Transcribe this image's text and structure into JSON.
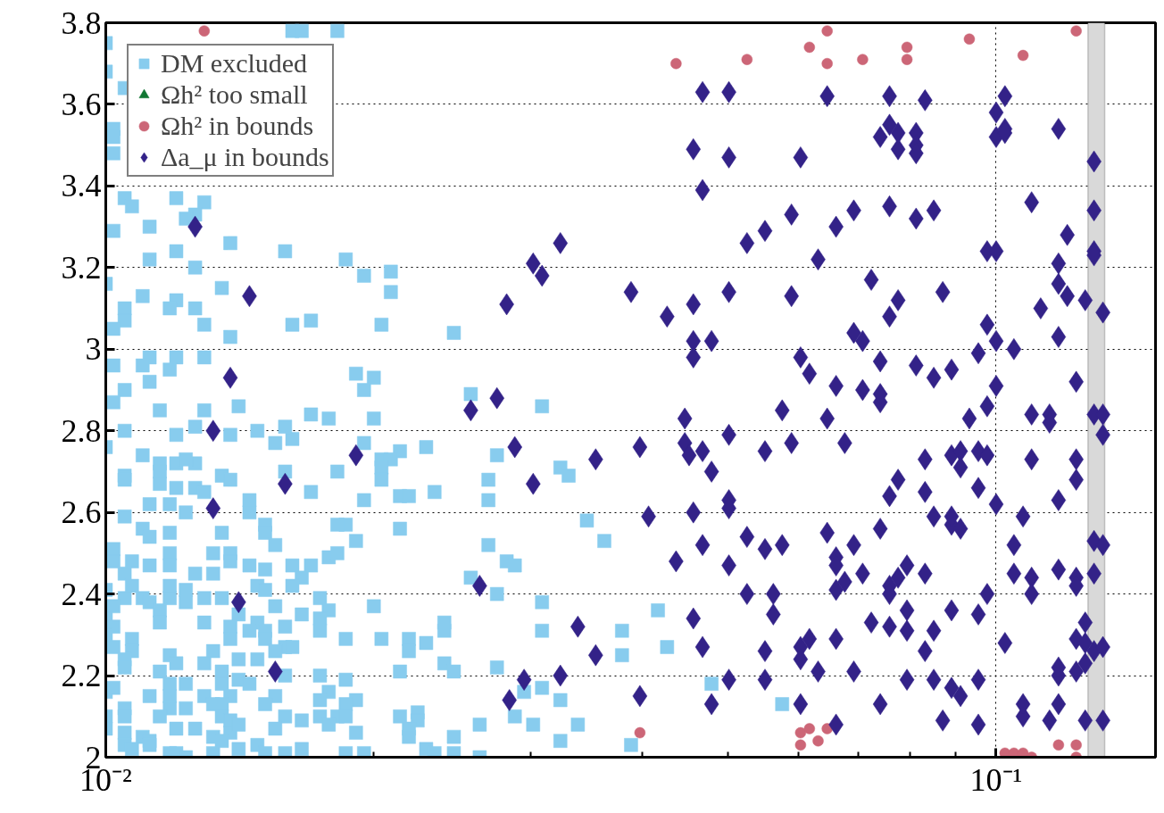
{
  "chart_data": {
    "type": "scatter",
    "log": "x",
    "grid": true,
    "legend": "top left",
    "xlim": [
      0.01,
      0.151
    ],
    "ylim": [
      2,
      3.8
    ],
    "xticks": [
      {
        "value": 0.01,
        "label": "10⁻²"
      },
      {
        "value": 0.02,
        "label": null
      },
      {
        "value": 0.03,
        "label": null
      },
      {
        "value": 0.04,
        "label": null
      },
      {
        "value": 0.05,
        "label": null
      },
      {
        "value": 0.06,
        "label": null
      },
      {
        "value": 0.07,
        "label": null
      },
      {
        "value": 0.08,
        "label": null
      },
      {
        "value": 0.09,
        "label": null
      },
      {
        "value": 0.1,
        "label": "10⁻¹"
      }
    ],
    "yticks": [
      2,
      2.2,
      2.4,
      2.6,
      2.8,
      3,
      3.2,
      3.4,
      3.6,
      3.8
    ],
    "bands": [
      {
        "axis": "x",
        "from": 0.1268,
        "to": 0.1324,
        "color": "#d9d9d9"
      }
    ],
    "series": [
      {
        "name": "DM excluded",
        "color": "#88ccee",
        "marker": "square",
        "x": [
          0.01,
          0.0105,
          0.0102,
          0.0102,
          0.0102,
          0.0105,
          0.0107,
          0.012,
          0.0129,
          0.0126,
          0.0123,
          0.0112,
          0.0102,
          0.0138,
          0.0159,
          0.012,
          0.0186,
          0.0112,
          0.0126,
          0.0195,
          0.0209,
          0.0209,
          0.01,
          0.011,
          0.0135,
          0.012,
          0.0105,
          0.0118,
          0.0126,
          0.0105,
          0.0129,
          0.0162,
          0.017,
          0.0204,
          0.0102,
          0.0138,
          0.0246,
          0.0102,
          0.0112,
          0.012,
          0.0129,
          0.011,
          0.0118,
          0.0191,
          0.02,
          0.0112,
          0.0105,
          0.0195,
          0.0257,
          0.0102,
          0.0115,
          0.0129,
          0.0141,
          0.017,
          0.0178,
          0.02,
          0.0309,
          0.0105,
          0.012,
          0.0126,
          0.0138,
          0.0148,
          0.0155,
          0.0162,
          0.0159,
          0.0195,
          0.0229,
          0.0214,
          0.01,
          0.011,
          0.0115,
          0.012,
          0.0126,
          0.0123,
          0.0204,
          0.0209,
          0.0275,
          0.0324,
          0.0331,
          0.0269,
          0.0105,
          0.0115,
          0.0135,
          0.0138,
          0.0159,
          0.0182,
          0.0204,
          0.0204,
          0.0105,
          0.0115,
          0.012,
          0.0126,
          0.0129,
          0.017,
          0.0214,
          0.0219,
          0.0234,
          0.0269,
          0.0112,
          0.0118,
          0.0145,
          0.0195,
          0.0123,
          0.0145,
          0.0105,
          0.0347,
          0.011,
          0.0118,
          0.0112,
          0.0186,
          0.0182,
          0.0214,
          0.0151,
          0.0151,
          0.0135,
          0.0191,
          0.0363,
          0.0155,
          0.0269,
          0.0102,
          0.0138,
          0.0118,
          0.0132,
          0.0102,
          0.0138,
          0.0178,
          0.0182,
          0.0107,
          0.0112,
          0.0118,
          0.0145,
          0.0151,
          0.0162,
          0.017,
          0.0282,
          0.0288,
          0.0105,
          0.0132,
          0.0126,
          0.0166,
          0.0257,
          0.0107,
          0.0118,
          0.0123,
          0.0148,
          0.0151,
          0.0162,
          0.01,
          0.0275,
          0.0105,
          0.011,
          0.0118,
          0.0129,
          0.0135,
          0.0174,
          0.0123,
          0.0112,
          0.0309,
          0.0102,
          0.0115,
          0.0141,
          0.0155,
          0.0178,
          0.02,
          0.0166,
          0.0417,
          0.01,
          0.0102,
          0.0115,
          0.0129,
          0.0138,
          0.0148,
          0.0159,
          0.0174,
          0.024,
          0.01,
          0.0107,
          0.0145,
          0.0151,
          0.0174,
          0.0138,
          0.0151,
          0.0186,
          0.0204,
          0.0219,
          0.0229,
          0.024,
          0.0309,
          0.038,
          0.0102,
          0.0107,
          0.0132,
          0.0159,
          0.0162,
          0.0427,
          0.038,
          0.0105,
          0.0118,
          0.012,
          0.0129,
          0.0141,
          0.0148,
          0.0155,
          0.0219,
          0.024,
          0.0246,
          0.0275,
          0.0105,
          0.0115,
          0.0135,
          0.0141,
          0.0159,
          0.0174,
          0.0186,
          0.0214,
          0.01,
          0.0102,
          0.0118,
          0.0123,
          0.0135,
          0.0145,
          0.0479,
          0.0309,
          0.0295,
          0.0112,
          0.0118,
          0.0129,
          0.0138,
          0.0155,
          0.0178,
          0.0174,
          0.0191,
          0.0324,
          0.0186,
          0.0575,
          0.0105,
          0.0118,
          0.0123,
          0.0132,
          0.0135,
          0.0151,
          0.0224,
          0.01,
          0.0105,
          0.0115,
          0.0135,
          0.0138,
          0.0159,
          0.0166,
          0.0174,
          0.0182,
          0.0186,
          0.0214,
          0.0224,
          0.0288,
          0.01,
          0.012,
          0.0126,
          0.0138,
          0.0141,
          0.0155,
          0.0178,
          0.0191,
          0.0219,
          0.0263,
          0.0302,
          0.0339,
          0.0105,
          0.011,
          0.0112,
          0.0132,
          0.0135,
          0.0219,
          0.0246,
          0.0324,
          0.0389,
          0.0105,
          0.0107,
          0.0112,
          0.0118,
          0.012,
          0.0123,
          0.0132,
          0.0141,
          0.0148,
          0.0151,
          0.0159,
          0.0166,
          0.0186,
          0.0195,
          0.0229,
          0.0234,
          0.0246,
          0.0263,
          0.0162,
          0.0166,
          0.0182,
          0.01
        ],
        "values": [
          3.68,
          3.64,
          3.54,
          3.52,
          3.48,
          3.37,
          3.35,
          3.37,
          3.36,
          3.33,
          3.32,
          3.3,
          3.29,
          3.26,
          3.24,
          3.24,
          3.22,
          3.22,
          3.2,
          3.18,
          3.19,
          3.14,
          3.16,
          3.13,
          3.15,
          3.12,
          3.1,
          3.1,
          3.1,
          3.07,
          3.06,
          3.06,
          3.07,
          3.06,
          3.05,
          3.03,
          3.04,
          2.96,
          2.98,
          2.98,
          2.98,
          2.96,
          2.95,
          2.94,
          2.93,
          2.92,
          2.9,
          2.9,
          2.89,
          2.87,
          2.85,
          2.85,
          2.86,
          2.84,
          2.83,
          2.83,
          2.86,
          2.8,
          2.79,
          2.81,
          2.79,
          2.8,
          2.77,
          2.78,
          2.81,
          2.77,
          2.76,
          2.75,
          2.76,
          2.74,
          2.72,
          2.72,
          2.72,
          2.73,
          2.73,
          2.73,
          2.74,
          2.71,
          2.69,
          2.68,
          2.69,
          2.7,
          2.69,
          2.68,
          2.7,
          2.7,
          2.71,
          2.68,
          2.68,
          2.67,
          2.66,
          2.66,
          2.65,
          2.65,
          2.64,
          2.64,
          2.65,
          2.63,
          2.62,
          2.62,
          2.63,
          2.63,
          2.6,
          2.6,
          2.59,
          2.58,
          2.56,
          2.55,
          2.54,
          2.57,
          2.57,
          2.56,
          2.57,
          2.55,
          2.55,
          2.53,
          2.53,
          2.52,
          2.52,
          2.51,
          2.5,
          2.5,
          2.5,
          2.48,
          2.48,
          2.49,
          2.5,
          2.48,
          2.47,
          2.47,
          2.47,
          2.46,
          2.47,
          2.47,
          2.48,
          2.47,
          2.45,
          2.45,
          2.45,
          2.44,
          2.44,
          2.42,
          2.42,
          2.41,
          2.42,
          2.41,
          2.42,
          2.41,
          2.4,
          2.39,
          2.39,
          2.39,
          2.39,
          2.39,
          2.39,
          2.38,
          2.38,
          2.38,
          2.37,
          2.36,
          2.35,
          2.37,
          2.36,
          2.37,
          2.35,
          2.36,
          2.34,
          2.32,
          2.33,
          2.33,
          2.32,
          2.33,
          2.32,
          2.34,
          2.33,
          2.3,
          2.29,
          2.31,
          2.31,
          2.31,
          2.29,
          2.29,
          2.29,
          2.29,
          2.29,
          2.28,
          2.31,
          2.31,
          2.31,
          2.27,
          2.26,
          2.26,
          2.27,
          2.27,
          2.27,
          2.25,
          2.24,
          2.25,
          2.23,
          2.23,
          2.24,
          2.24,
          2.26,
          2.26,
          2.23,
          2.21,
          2.22,
          2.22,
          2.21,
          2.21,
          2.19,
          2.2,
          2.2,
          2.19,
          2.21,
          2.16,
          2.17,
          2.18,
          2.18,
          2.18,
          2.18,
          2.18,
          2.17,
          2.16,
          2.15,
          2.15,
          2.15,
          2.15,
          2.15,
          2.16,
          2.14,
          2.14,
          2.14,
          2.13,
          2.13,
          2.12,
          2.12,
          2.12,
          2.13,
          2.13,
          2.13,
          2.11,
          2.1,
          2.1,
          2.1,
          2.1,
          2.09,
          2.1,
          2.09,
          2.1,
          2.1,
          2.1,
          2.1,
          2.09,
          2.1,
          2.07,
          2.07,
          2.07,
          2.06,
          2.08,
          2.07,
          2.08,
          2.06,
          2.07,
          2.08,
          2.08,
          2.08,
          2.06,
          2.05,
          2.04,
          2.05,
          2.04,
          2.05,
          2.05,
          2.04,
          2.03,
          2.03,
          2.02,
          2.03,
          2.01,
          2.01,
          2.0,
          2.01,
          2.02,
          2.03,
          2.01,
          2.01,
          2.02,
          2.01,
          2.01,
          2.02,
          2.01,
          2.01,
          2.0,
          3.78,
          3.78,
          3.78,
          3.75
        ]
      },
      {
        "name": "Ωh² too small",
        "color": "#117733",
        "marker": "triangle"
      },
      {
        "name": "Ωh² in bounds",
        "color": "#cc6677",
        "marker": "circle",
        "x": [
          0.0129,
          0.0437,
          0.0525,
          0.0617,
          0.0646,
          0.0646,
          0.0708,
          0.0794,
          0.0794,
          0.0933,
          0.1072,
          0.123,
          0.0398,
          0.0603,
          0.0603,
          0.0617,
          0.0631,
          0.0646,
          0.1023,
          0.1047,
          0.1072,
          0.1096,
          0.1175,
          0.123,
          0.123
        ],
        "values": [
          3.78,
          3.7,
          3.71,
          3.74,
          3.78,
          3.7,
          3.71,
          3.74,
          3.71,
          3.76,
          3.72,
          3.78,
          2.06,
          2.06,
          2.03,
          2.07,
          2.04,
          2.07,
          2.01,
          2.01,
          2.01,
          2.0,
          2.03,
          2.0,
          2.03
        ]
      },
      {
        "name": "Δa_μ in bounds",
        "color": "#332288",
        "marker": "diamond",
        "x": [
          0.0126,
          0.0145,
          0.0138,
          0.0132,
          0.0191,
          0.0159,
          0.0132,
          0.0141,
          0.0155,
          0.0257,
          0.0275,
          0.0263,
          0.0282,
          0.0302,
          0.0309,
          0.0324,
          0.0288,
          0.0302,
          0.0295,
          0.0324,
          0.0339,
          0.0355,
          0.0355,
          0.0284,
          0.0389,
          0.0398,
          0.0407,
          0.0398,
          0.0427,
          0.0437,
          0.0447,
          0.0447,
          0.0452,
          0.0457,
          0.0457,
          0.0457,
          0.0457,
          0.0457,
          0.0468,
          0.0457,
          0.0468,
          0.0468,
          0.0468,
          0.0468,
          0.0479,
          0.0479,
          0.0479,
          0.0501,
          0.0501,
          0.0501,
          0.0501,
          0.0501,
          0.0501,
          0.0501,
          0.0501,
          0.0525,
          0.0525,
          0.0525,
          0.055,
          0.055,
          0.055,
          0.055,
          0.055,
          0.0562,
          0.0562,
          0.0575,
          0.0575,
          0.0589,
          0.0589,
          0.0589,
          0.0603,
          0.0603,
          0.0603,
          0.0603,
          0.0603,
          0.0617,
          0.0617,
          0.0631,
          0.0631,
          0.0646,
          0.0646,
          0.0646,
          0.0661,
          0.0661,
          0.0661,
          0.0661,
          0.0661,
          0.0661,
          0.0661,
          0.0676,
          0.0676,
          0.0692,
          0.0692,
          0.0692,
          0.0692,
          0.0708,
          0.0708,
          0.0708,
          0.0724,
          0.0724,
          0.0741,
          0.0741,
          0.0741,
          0.0741,
          0.0741,
          0.0741,
          0.0759,
          0.0759,
          0.0759,
          0.0759,
          0.0759,
          0.0759,
          0.0759,
          0.0759,
          0.0776,
          0.0776,
          0.0776,
          0.0776,
          0.0776,
          0.0794,
          0.0794,
          0.0794,
          0.0794,
          0.0813,
          0.0813,
          0.0813,
          0.0813,
          0.0813,
          0.0832,
          0.0832,
          0.0832,
          0.0832,
          0.0832,
          0.0851,
          0.0851,
          0.0851,
          0.0851,
          0.0851,
          0.0871,
          0.0871,
          0.0891,
          0.0891,
          0.0891,
          0.0891,
          0.0891,
          0.0891,
          0.0912,
          0.0912,
          0.0912,
          0.0912,
          0.0933,
          0.0955,
          0.0955,
          0.0955,
          0.0955,
          0.0955,
          0.0955,
          0.0977,
          0.0977,
          0.0977,
          0.0977,
          0.0977,
          0.1,
          0.1,
          0.1,
          0.1,
          0.1,
          0.1,
          0.1023,
          0.1023,
          0.1023,
          0.1023,
          0.1047,
          0.1047,
          0.1047,
          0.1072,
          0.1072,
          0.1072,
          0.1096,
          0.1096,
          0.1096,
          0.1096,
          0.1096,
          0.1122,
          0.1148,
          0.1148,
          0.1148,
          0.1175,
          0.1175,
          0.1175,
          0.1175,
          0.1175,
          0.1175,
          0.1175,
          0.1175,
          0.1175,
          0.1202,
          0.1202,
          0.123,
          0.123,
          0.123,
          0.123,
          0.123,
          0.123,
          0.123,
          0.1259,
          0.1259,
          0.1259,
          0.1259,
          0.1259,
          0.1288,
          0.1288,
          0.1288,
          0.1288,
          0.1288,
          0.1288,
          0.1288,
          0.1288,
          0.1318,
          0.1318,
          0.1318,
          0.1318,
          0.1318,
          0.1318
        ],
        "values": [
          3.3,
          3.13,
          2.93,
          2.8,
          2.74,
          2.67,
          2.61,
          2.38,
          2.21,
          2.85,
          2.88,
          2.42,
          3.11,
          3.21,
          3.18,
          3.26,
          2.76,
          2.67,
          2.19,
          2.2,
          2.32,
          2.73,
          2.25,
          2.14,
          3.14,
          2.15,
          2.59,
          2.76,
          3.08,
          2.48,
          2.83,
          2.77,
          2.74,
          3.02,
          2.98,
          2.6,
          2.34,
          3.11,
          3.63,
          3.49,
          3.39,
          2.75,
          2.52,
          2.27,
          2.13,
          2.7,
          3.02,
          3.63,
          3.47,
          3.14,
          2.79,
          2.63,
          2.61,
          2.47,
          2.19,
          2.4,
          3.26,
          2.54,
          3.29,
          2.51,
          2.19,
          2.75,
          2.26,
          2.4,
          2.35,
          2.52,
          2.85,
          3.33,
          3.13,
          2.77,
          2.98,
          2.27,
          2.24,
          2.13,
          3.47,
          2.94,
          2.29,
          2.21,
          3.22,
          2.55,
          2.83,
          3.62,
          2.29,
          3.3,
          2.41,
          2.08,
          2.91,
          2.49,
          2.47,
          2.43,
          2.77,
          2.52,
          2.21,
          3.04,
          3.34,
          3.02,
          2.9,
          2.45,
          3.17,
          2.33,
          3.52,
          2.87,
          2.89,
          2.97,
          2.56,
          2.13,
          3.55,
          3.08,
          2.32,
          3.62,
          2.42,
          3.35,
          2.64,
          2.4,
          3.49,
          2.68,
          3.53,
          3.12,
          2.44,
          2.31,
          2.36,
          2.47,
          2.19,
          3.53,
          3.32,
          3.5,
          2.96,
          3.48,
          2.65,
          3.61,
          2.26,
          2.45,
          2.73,
          2.93,
          2.31,
          2.19,
          2.59,
          3.34,
          3.14,
          2.09,
          2.57,
          2.74,
          2.59,
          2.36,
          2.95,
          2.17,
          2.75,
          2.71,
          2.15,
          2.56,
          2.83,
          2.19,
          2.75,
          2.99,
          2.08,
          2.66,
          2.35,
          2.4,
          2.86,
          3.24,
          2.74,
          3.06,
          3.58,
          2.62,
          2.91,
          3.02,
          3.52,
          3.24,
          2.28,
          3.54,
          3.53,
          3.62,
          3.0,
          2.45,
          2.52,
          2.1,
          2.59,
          2.13,
          2.84,
          2.73,
          3.36,
          2.44,
          2.4,
          3.1,
          2.84,
          2.82,
          2.09,
          3.54,
          3.21,
          2.46,
          2.2,
          3.16,
          2.63,
          2.13,
          2.22,
          3.03,
          3.28,
          3.13,
          2.68,
          2.44,
          2.92,
          2.29,
          2.21,
          2.73,
          2.42,
          3.12,
          2.28,
          2.33,
          2.23,
          2.09,
          3.46,
          2.53,
          2.84,
          2.26,
          3.34,
          3.24,
          3.23,
          2.45,
          2.79,
          3.09,
          2.84,
          2.09,
          2.52,
          2.27
        ]
      }
    ]
  }
}
